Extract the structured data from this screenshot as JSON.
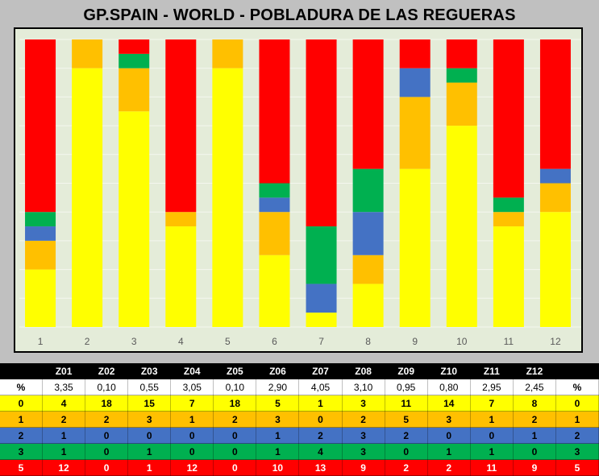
{
  "title": "GP.SPAIN - WORLD  - POBLADURA DE LAS REGUERAS",
  "chart_data": {
    "type": "bar",
    "stacked": true,
    "categories": [
      "1",
      "2",
      "3",
      "4",
      "5",
      "6",
      "7",
      "8",
      "9",
      "10",
      "11",
      "12"
    ],
    "series": [
      {
        "color": "#ffff00",
        "values": [
          4,
          18,
          15,
          7,
          18,
          5,
          1,
          3,
          11,
          14,
          7,
          8
        ]
      },
      {
        "color": "#ffc000",
        "values": [
          2,
          2,
          3,
          1,
          2,
          3,
          0,
          2,
          5,
          3,
          1,
          2
        ]
      },
      {
        "color": "#4472c4",
        "values": [
          1,
          0,
          0,
          0,
          0,
          1,
          2,
          3,
          2,
          0,
          0,
          1
        ]
      },
      {
        "color": "#00b050",
        "values": [
          1,
          0,
          1,
          0,
          0,
          1,
          4,
          3,
          0,
          1,
          1,
          0
        ]
      },
      {
        "color": "#ff0000",
        "values": [
          12,
          0,
          1,
          12,
          0,
          10,
          13,
          9,
          2,
          2,
          11,
          9
        ]
      }
    ],
    "ylim": [
      0,
      20
    ],
    "grid": true,
    "legend": "none"
  },
  "table": {
    "header": [
      "",
      "Z01",
      "Z02",
      "Z03",
      "Z04",
      "Z05",
      "Z06",
      "Z07",
      "Z08",
      "Z09",
      "Z10",
      "Z11",
      "Z12",
      ""
    ],
    "rows": [
      {
        "cls": "pct",
        "cells": [
          "%",
          "3,35",
          "0,10",
          "0,55",
          "3,05",
          "0,10",
          "2,90",
          "4,05",
          "3,10",
          "0,95",
          "0,80",
          "2,95",
          "2,45",
          "%"
        ]
      },
      {
        "cls": "r0",
        "cells": [
          "0",
          "4",
          "18",
          "15",
          "7",
          "18",
          "5",
          "1",
          "3",
          "11",
          "14",
          "7",
          "8",
          "0"
        ]
      },
      {
        "cls": "r1",
        "cells": [
          "1",
          "2",
          "2",
          "3",
          "1",
          "2",
          "3",
          "0",
          "2",
          "5",
          "3",
          "1",
          "2",
          "1"
        ]
      },
      {
        "cls": "r2",
        "cells": [
          "2",
          "1",
          "0",
          "0",
          "0",
          "0",
          "1",
          "2",
          "3",
          "2",
          "0",
          "0",
          "1",
          "2"
        ]
      },
      {
        "cls": "r3",
        "cells": [
          "3",
          "1",
          "0",
          "1",
          "0",
          "0",
          "1",
          "4",
          "3",
          "0",
          "1",
          "1",
          "0",
          "3"
        ]
      },
      {
        "cls": "r5",
        "cells": [
          "5",
          "12",
          "0",
          "1",
          "12",
          "0",
          "10",
          "13",
          "9",
          "2",
          "2",
          "11",
          "9",
          "5"
        ]
      }
    ]
  }
}
